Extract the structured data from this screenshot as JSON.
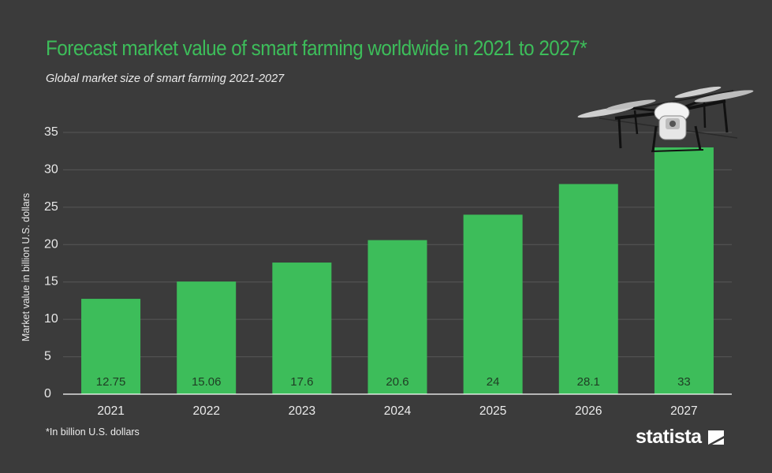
{
  "title": "Forecast market value of smart farming worldwide in 2021 to 2027*",
  "subtitle": "Global market size of smart farming 2021-2027",
  "footnote": "*In billion U.S. dollars",
  "brand": "statista",
  "colors": {
    "background": "#3b3b3b",
    "accent": "#3dbd5a",
    "bar": "#3dbd5a",
    "text": "#ececec"
  },
  "icons": [
    "drone-image",
    "statista-logo-icon"
  ],
  "chart_data": {
    "type": "bar",
    "categories": [
      "2021",
      "2022",
      "2023",
      "2024",
      "2025",
      "2026",
      "2027"
    ],
    "values": [
      12.75,
      15.06,
      17.6,
      20.6,
      24,
      28.1,
      33
    ],
    "value_labels": [
      "12.75",
      "15.06",
      "17.6",
      "20.6",
      "24",
      "28.1",
      "33"
    ],
    "title": "Forecast market value of smart farming worldwide in 2021 to 2027*",
    "subtitle": "Global market size of smart farming 2021-2027",
    "xlabel": "",
    "ylabel": "Market value in billion U.S. dollars",
    "ylim": [
      0,
      35
    ],
    "yticks": [
      0,
      5,
      10,
      15,
      20,
      25,
      30,
      35
    ],
    "grid": true,
    "legend": "none"
  }
}
